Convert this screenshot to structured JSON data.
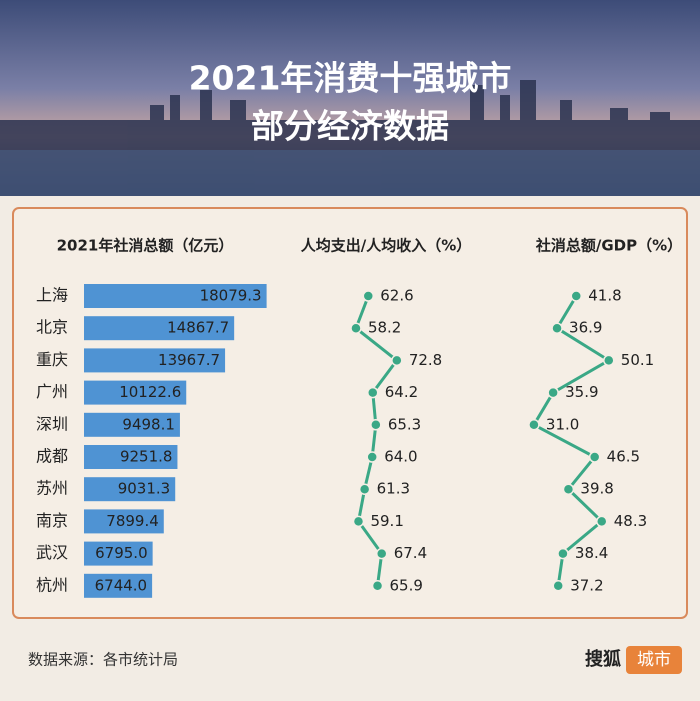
{
  "header": {
    "title": [
      "2021年消费十强城市",
      "部分经济数据"
    ]
  },
  "chart_data": [
    {
      "type": "bar",
      "title": "2021年社消总额（亿元）",
      "categories": [
        "上海",
        "北京",
        "重庆",
        "广州",
        "深圳",
        "成都",
        "苏州",
        "南京",
        "武汉",
        "杭州"
      ],
      "values": [
        18079.3,
        14867.7,
        13967.7,
        10122.6,
        9498.1,
        9251.8,
        9031.3,
        7899.4,
        6795.0,
        6744.0
      ],
      "value_labels": [
        "18079.3",
        "14867.7",
        "13967.7",
        "10122.6",
        "9498.1",
        "9251.8",
        "9031.3",
        "7899.4",
        "6795.0",
        "6744.0"
      ],
      "color": "#4f93d3",
      "xlim": [
        0,
        20000
      ]
    },
    {
      "type": "line",
      "title": "人均支出/人均收入（%）",
      "values": [
        62.6,
        58.2,
        72.8,
        64.2,
        65.3,
        64.0,
        61.3,
        59.1,
        67.4,
        65.9
      ],
      "value_labels": [
        "62.6",
        "58.2",
        "72.8",
        "64.2",
        "65.3",
        "64.0",
        "61.3",
        "59.1",
        "67.4",
        "65.9"
      ],
      "color": "#3aa886",
      "xlim": [
        50,
        80
      ]
    },
    {
      "type": "line",
      "title": "社消总额/GDP（%）",
      "values": [
        41.8,
        36.9,
        50.1,
        35.9,
        31.0,
        46.5,
        39.8,
        48.3,
        38.4,
        37.2
      ],
      "value_labels": [
        "41.8",
        "36.9",
        "50.1",
        "35.9",
        "31.0",
        "46.5",
        "39.8",
        "48.3",
        "38.4",
        "37.2"
      ],
      "color": "#3aa886",
      "xlim": [
        30,
        55
      ]
    }
  ],
  "footer": {
    "source": "数据来源：各市统计局",
    "brand": "搜狐",
    "brand_tag": "城市"
  }
}
